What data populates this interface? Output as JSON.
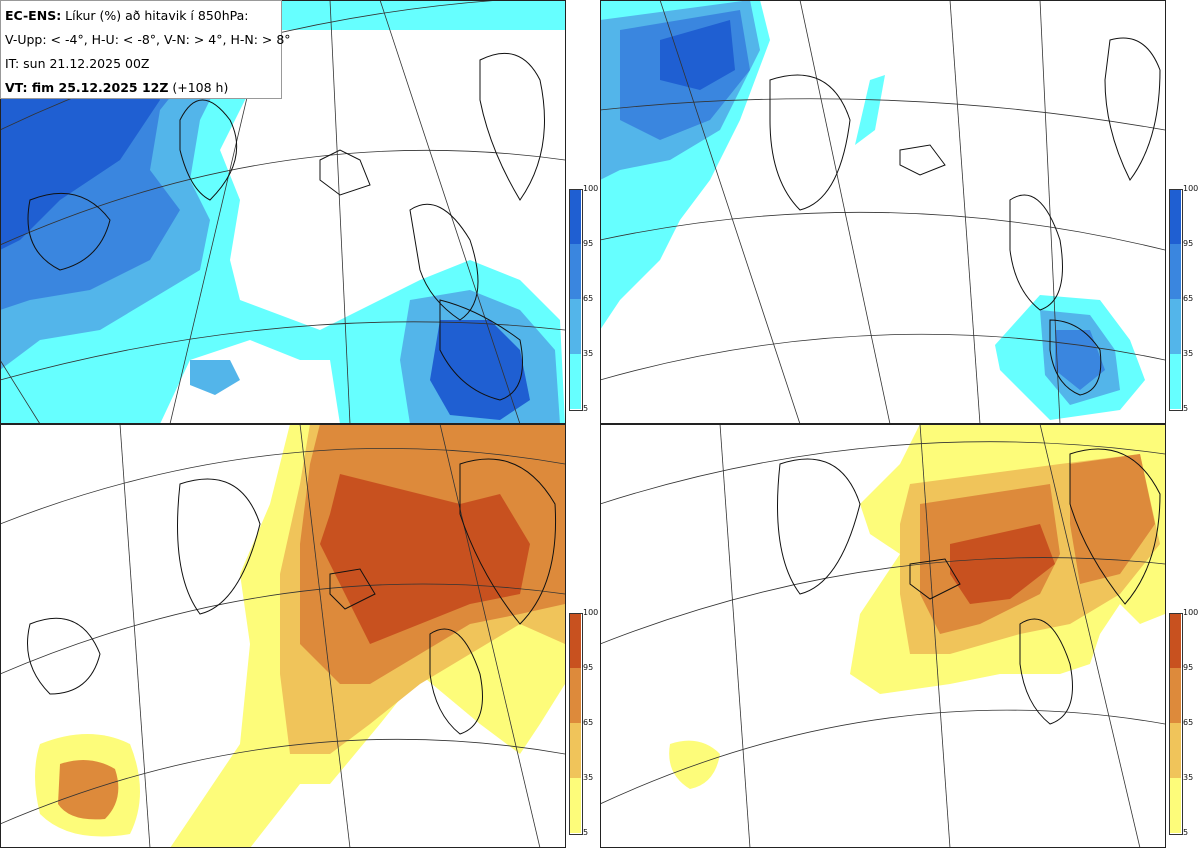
{
  "legend": {
    "title_bold": "EC-ENS:",
    "title_rest": " Líkur (%) að hitavik í 850hPa:",
    "thresholds": "V-Upp: < -4°, H-U: < -8°, V-N: > 4°, H-N: > 8°",
    "init_time": "IT: sun 21.12.2025 00Z",
    "valid_bold": "VT: fim 25.12.2025 12Z",
    "valid_rest": " (+108 h)"
  },
  "colorbar": {
    "ticks": [
      "100",
      "95",
      "65",
      "35",
      "5"
    ],
    "blue_colors": [
      "#1f5fd2",
      "#3a86df",
      "#53b5ea",
      "#66ffff"
    ],
    "orange_colors": [
      "#c8511f",
      "#dd8a3b",
      "#f0c45a",
      "#fdfc7a"
    ]
  },
  "panels": [
    {
      "id": "tl",
      "quantity": "V-Upp"
    },
    {
      "id": "tr",
      "quantity": "H-U"
    },
    {
      "id": "bl",
      "quantity": "V-N"
    },
    {
      "id": "br",
      "quantity": "H-N"
    }
  ]
}
